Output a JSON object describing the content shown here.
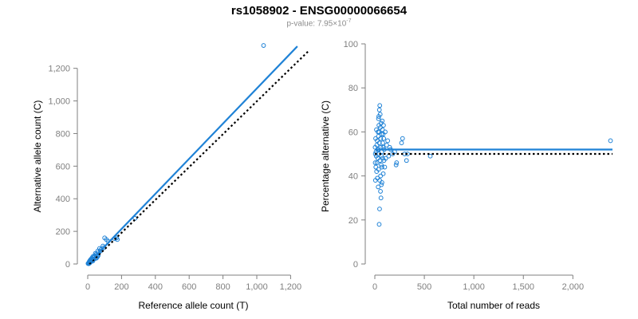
{
  "title": "rs1058902 - ENSG00000066654",
  "subtitle": {
    "prefix": "p-value: 7.95×10",
    "exponent": "-7"
  },
  "colors": {
    "points": "#1f82d6",
    "fit": "#1f82d6",
    "reference": "#000000",
    "axis": "#7f7f7f"
  },
  "chart_data": [
    {
      "type": "scatter",
      "xlabel": "Reference allele count (T)",
      "ylabel": "Alternative allele count (C)",
      "xlim": [
        0,
        1250
      ],
      "ylim": [
        0,
        1350
      ],
      "xticks": [
        0,
        200,
        400,
        600,
        800,
        1000,
        1200
      ],
      "xtick_labels": [
        "0",
        "200",
        "400",
        "600",
        "800",
        "1,000",
        "1,200"
      ],
      "yticks": [
        0,
        200,
        400,
        600,
        800,
        1000,
        1200
      ],
      "ytick_labels": [
        "0",
        "200",
        "400",
        "600",
        "800",
        "1,000",
        "1,200"
      ],
      "points": [
        [
          1040,
          1340
        ],
        [
          280,
          280
        ],
        [
          170,
          160
        ],
        [
          175,
          150
        ],
        [
          160,
          155
        ],
        [
          120,
          140
        ],
        [
          110,
          150
        ],
        [
          100,
          160
        ],
        [
          95,
          100
        ],
        [
          90,
          110
        ],
        [
          80,
          90
        ],
        [
          75,
          80
        ],
        [
          70,
          95
        ],
        [
          65,
          70
        ],
        [
          60,
          80
        ],
        [
          55,
          55
        ],
        [
          50,
          60
        ],
        [
          45,
          65
        ],
        [
          40,
          50
        ],
        [
          35,
          40
        ],
        [
          30,
          45
        ],
        [
          28,
          30
        ],
        [
          25,
          25
        ],
        [
          22,
          30
        ],
        [
          20,
          20
        ],
        [
          18,
          15
        ],
        [
          15,
          20
        ],
        [
          12,
          10
        ],
        [
          10,
          12
        ],
        [
          8,
          6
        ],
        [
          6,
          8
        ],
        [
          5,
          4
        ],
        [
          4,
          3
        ],
        [
          3,
          2
        ],
        [
          2,
          3
        ],
        [
          42,
          32
        ],
        [
          33,
          28
        ],
        [
          27,
          22
        ],
        [
          48,
          40
        ],
        [
          58,
          44
        ],
        [
          62,
          52
        ],
        [
          38,
          46
        ],
        [
          52,
          36
        ],
        [
          24,
          36
        ],
        [
          30,
          18
        ],
        [
          16,
          26
        ],
        [
          14,
          8
        ],
        [
          11,
          18
        ],
        [
          9,
          14
        ],
        [
          7,
          2
        ]
      ],
      "fit_line": {
        "x": [
          10,
          1240
        ],
        "y": [
          10,
          1335
        ]
      },
      "reference_line": {
        "x": [
          10,
          1310
        ],
        "y": [
          0,
          1310
        ]
      },
      "grid": false,
      "legend": "none"
    },
    {
      "type": "scatter",
      "xlabel": "Total number of reads",
      "ylabel": "Percentage alternative (C)",
      "xlim": [
        0,
        2400
      ],
      "ylim": [
        0,
        100
      ],
      "xticks": [
        0,
        500,
        1000,
        1500,
        2000
      ],
      "xtick_labels": [
        "0",
        "500",
        "1,000",
        "1,500",
        "2,000"
      ],
      "yticks": [
        0,
        20,
        40,
        60,
        80,
        100
      ],
      "ytick_labels": [
        "0",
        "20",
        "40",
        "60",
        "80",
        "100"
      ],
      "points": [
        [
          2380,
          56
        ],
        [
          560,
          49
        ],
        [
          330,
          50
        ],
        [
          320,
          47
        ],
        [
          300,
          50
        ],
        [
          280,
          57
        ],
        [
          270,
          55
        ],
        [
          220,
          46
        ],
        [
          215,
          45
        ],
        [
          200,
          51
        ],
        [
          180,
          50
        ],
        [
          160,
          52
        ],
        [
          150,
          53
        ],
        [
          140,
          49
        ],
        [
          130,
          56
        ],
        [
          120,
          54
        ],
        [
          110,
          48
        ],
        [
          105,
          60
        ],
        [
          100,
          44
        ],
        [
          95,
          52
        ],
        [
          90,
          57
        ],
        [
          88,
          63
        ],
        [
          85,
          41
        ],
        [
          80,
          55
        ],
        [
          78,
          48
        ],
        [
          75,
          65
        ],
        [
          72,
          37
        ],
        [
          70,
          51
        ],
        [
          68,
          59
        ],
        [
          65,
          45
        ],
        [
          62,
          30
        ],
        [
          60,
          53
        ],
        [
          58,
          40
        ],
        [
          55,
          62
        ],
        [
          52,
          47
        ],
        [
          50,
          72
        ],
        [
          48,
          25
        ],
        [
          46,
          55
        ],
        [
          44,
          18
        ],
        [
          42,
          50
        ],
        [
          40,
          67
        ],
        [
          38,
          43
        ],
        [
          36,
          58
        ],
        [
          34,
          35
        ],
        [
          32,
          60
        ],
        [
          30,
          48
        ],
        [
          28,
          52
        ],
        [
          26,
          39
        ],
        [
          24,
          56
        ],
        [
          22,
          46
        ],
        [
          20,
          54
        ],
        [
          18,
          42
        ],
        [
          16,
          61
        ],
        [
          14,
          49
        ],
        [
          12,
          51
        ],
        [
          10,
          44
        ],
        [
          8,
          57
        ],
        [
          6,
          38
        ],
        [
          5,
          50
        ],
        [
          4,
          46
        ],
        [
          3,
          53
        ],
        [
          54,
          68
        ],
        [
          46,
          70
        ],
        [
          66,
          36
        ],
        [
          84,
          59
        ],
        [
          92,
          47
        ],
        [
          57,
          33
        ],
        [
          63,
          64
        ],
        [
          41,
          63
        ],
        [
          37,
          66
        ],
        [
          71,
          44
        ],
        [
          77,
          61
        ],
        [
          83,
          53
        ],
        [
          49,
          38
        ],
        [
          59,
          57
        ],
        [
          35,
          52
        ],
        [
          43,
          60
        ],
        [
          67,
          49
        ]
      ],
      "fit_line": {
        "x": [
          0,
          2400
        ],
        "y": [
          52,
          52
        ]
      },
      "reference_line": {
        "x": [
          0,
          2400
        ],
        "y": [
          50,
          50
        ]
      },
      "grid": false,
      "legend": "none"
    }
  ]
}
